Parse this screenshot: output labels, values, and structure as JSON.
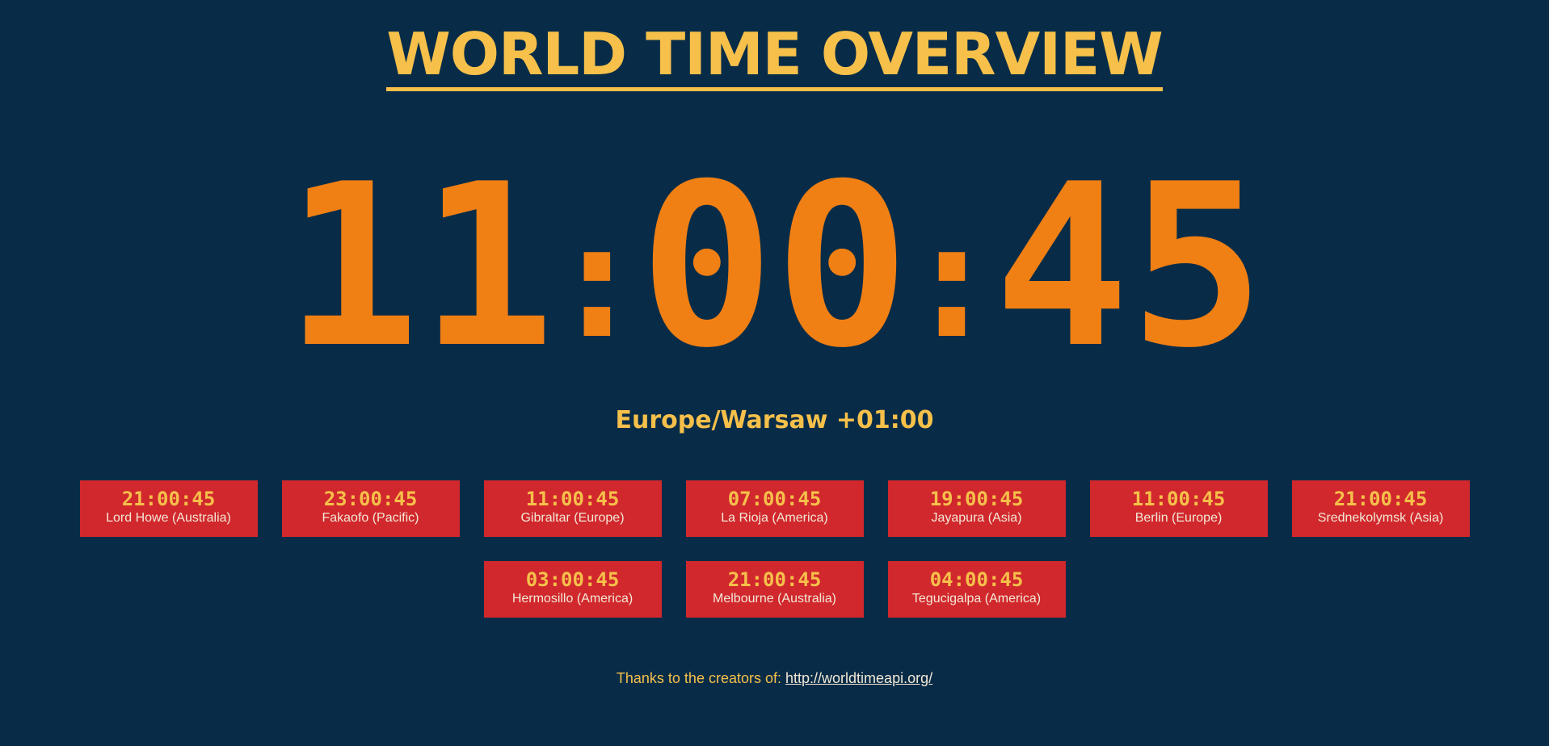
{
  "header": {
    "title": "WORLD TIME OVERVIEW"
  },
  "main_clock": {
    "hours": "11",
    "minutes": "00",
    "seconds": "45",
    "separator": ":",
    "timezone_label": "Europe/Warsaw +01:00"
  },
  "zones": [
    {
      "time": "21:00:45",
      "name": "Lord Howe (Australia)"
    },
    {
      "time": "23:00:45",
      "name": "Fakaofo (Pacific)"
    },
    {
      "time": "11:00:45",
      "name": "Gibraltar (Europe)"
    },
    {
      "time": "07:00:45",
      "name": "La Rioja (America)"
    },
    {
      "time": "19:00:45",
      "name": "Jayapura (Asia)"
    },
    {
      "time": "11:00:45",
      "name": "Berlin (Europe)"
    },
    {
      "time": "21:00:45",
      "name": "Srednekolymsk (Asia)"
    },
    {
      "time": "03:00:45",
      "name": "Hermosillo (America)"
    },
    {
      "time": "21:00:45",
      "name": "Melbourne (Australia)"
    },
    {
      "time": "04:00:45",
      "name": "Tegucigalpa (America)"
    }
  ],
  "footer": {
    "thanks_text": "Thanks to the creators of:",
    "link_text": "http://worldtimeapi.org/"
  },
  "colors": {
    "background": "#082c48",
    "accent_yellow": "#f6c04a",
    "clock_orange": "#f07f14",
    "card_red": "#d1282d"
  }
}
